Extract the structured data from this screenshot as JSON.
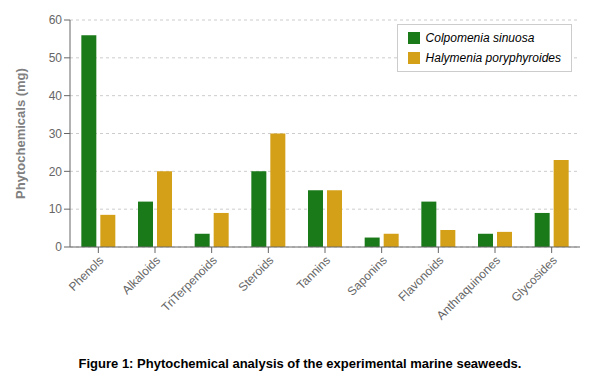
{
  "chart_data": {
    "type": "bar",
    "title": "Figure 1: Phytochemical analysis of the experimental marine seaweeds.",
    "ylabel": "Phytochemicals (mg)",
    "categories": [
      "Phenols",
      "Alkaloids",
      "TriTerpenoids",
      "Steroids",
      "Tannins",
      "Saponins",
      "Flavonoids",
      "Anthraquinones",
      "Glycosides"
    ],
    "series": [
      {
        "name": "Colpomenia sinuosa",
        "color": "#1a7a1a",
        "values": [
          56,
          12,
          3.5,
          20,
          15,
          2.5,
          12,
          3.5,
          9
        ]
      },
      {
        "name": "Halymenia poryphyroides",
        "color": "#d4a017",
        "values": [
          8.5,
          20,
          9,
          30,
          15,
          3.5,
          4.5,
          4,
          23
        ]
      }
    ],
    "ylim": [
      0,
      60
    ],
    "yticks": [
      0,
      10,
      20,
      30,
      40,
      50,
      60
    ],
    "grid": true,
    "legend": "upper right"
  }
}
